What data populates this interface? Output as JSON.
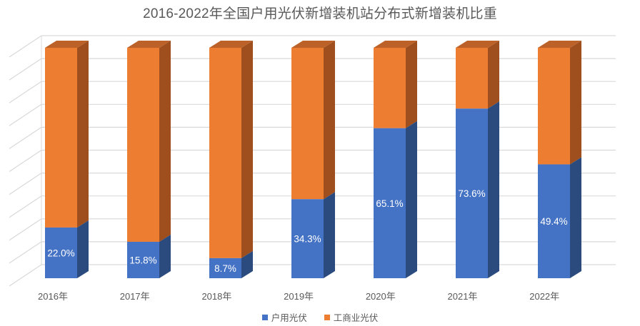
{
  "chart_data": {
    "type": "bar",
    "subtype": "3d-stacked-column-100pct",
    "title": "2016-2022年全国户用光伏新增装机站分布式新增装机比重",
    "categories": [
      "2016年",
      "2017年",
      "2018年",
      "2019年",
      "2020年",
      "2021年",
      "2022年"
    ],
    "series": [
      {
        "name": "户用光伏",
        "color": "#4472C4",
        "side_color": "#2B4B7F",
        "values": [
          22.0,
          15.8,
          8.7,
          34.3,
          65.1,
          73.6,
          49.4
        ],
        "data_labels": [
          "22.0%",
          "15.8%",
          "8.7%",
          "34.3%",
          "65.1%",
          "73.6%",
          "49.4%"
        ]
      },
      {
        "name": "工商业光伏",
        "color": "#ED7D31",
        "side_color": "#9E4F1D",
        "top_color": "#BC6127",
        "values": [
          78.0,
          84.2,
          91.3,
          65.7,
          34.9,
          26.4,
          50.6
        ],
        "data_labels": []
      }
    ],
    "ylim": [
      0,
      100
    ],
    "grid": true,
    "gridline_color": "#D9D9D9",
    "data_label_color": "#FFFFFF",
    "axis_text_color": "#595959",
    "title_color": "#595959",
    "legend_position": "bottom"
  },
  "legend": {
    "items": [
      {
        "label": "户用光伏",
        "color": "#4472C4"
      },
      {
        "label": "工商业光伏",
        "color": "#ED7D31"
      }
    ]
  }
}
